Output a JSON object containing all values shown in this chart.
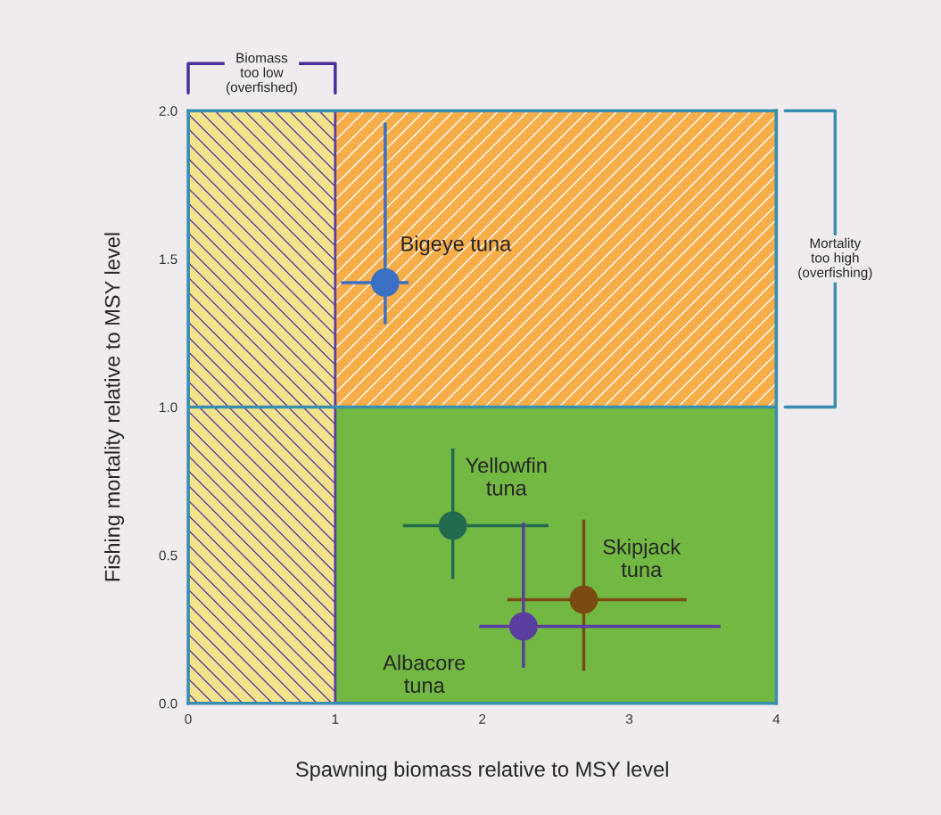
{
  "chart_data": {
    "type": "scatter",
    "xlabel": "Spawning biomass relative to MSY level",
    "ylabel": "Fishing mortality relative to MSY level",
    "xlim": [
      0,
      4
    ],
    "ylim": [
      0,
      2
    ],
    "xticks": [
      0,
      1,
      2,
      3,
      4
    ],
    "yticks": [
      {
        "value": 0,
        "label": "0.0"
      },
      {
        "value": 0.5,
        "label": "0.5"
      },
      {
        "value": 1,
        "label": "1.0"
      },
      {
        "value": 1.5,
        "label": "1.5"
      },
      {
        "value": 2,
        "label": "2.0"
      }
    ],
    "grid": false,
    "legend": false,
    "marker": "circle",
    "bands": [
      {
        "axis": "x",
        "from": 0,
        "to": 1,
        "color": "#f3e38c",
        "label": "Biomass\ntoo low\n(overfished)"
      },
      {
        "axis": "y",
        "from": 1,
        "to": 2,
        "color": "#f7ad48",
        "label": "Mortality\ntoo high\n(overfishing)"
      }
    ],
    "series": [
      {
        "name": "Bigeye tuna",
        "color": "#3b6fc4",
        "x": [
          1.34
        ],
        "values": [
          1.42
        ],
        "xerrors": [
          [
            1.04,
            1.5
          ]
        ],
        "errors": [
          [
            1.28,
            1.96
          ]
        ]
      },
      {
        "name": "Yellowfin\ntuna",
        "color": "#236b4e",
        "x": [
          1.8
        ],
        "values": [
          0.6
        ],
        "xerrors": [
          [
            1.46,
            2.45
          ]
        ],
        "errors": [
          [
            0.42,
            0.86
          ]
        ]
      },
      {
        "name": "Skipjack\ntuna",
        "color": "#7a4a12",
        "x": [
          2.69
        ],
        "values": [
          0.35
        ],
        "xerrors": [
          [
            2.17,
            3.39
          ]
        ],
        "errors": [
          [
            0.11,
            0.62
          ]
        ]
      },
      {
        "name": "Albacore\ntuna",
        "color": "#5b3fa0",
        "x": [
          2.28
        ],
        "values": [
          0.26
        ],
        "xerrors": [
          [
            1.98,
            3.62
          ]
        ],
        "errors": [
          [
            0.12,
            0.61
          ]
        ]
      }
    ]
  }
}
